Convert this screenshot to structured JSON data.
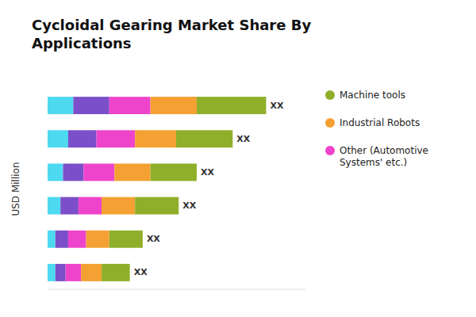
{
  "chart_data": {
    "type": "bar",
    "orientation": "horizontal",
    "stacked": true,
    "title": "Cycloidal Gearing Market Share By\nApplications",
    "y_label": "USD Million",
    "categories": [
      null,
      null,
      null,
      null,
      null,
      null
    ],
    "annotations": [
      "XX",
      "XX",
      "XX",
      "XX",
      "XX",
      "XX"
    ],
    "series": [
      {
        "color": "#4DD9F0",
        "values": [
          0.1,
          0.08,
          0.06,
          0.05,
          0.03,
          0.03
        ]
      },
      {
        "color": "#7B4FC9",
        "values": [
          0.14,
          0.11,
          0.08,
          0.07,
          0.05,
          0.04
        ]
      },
      {
        "name": "Other (Automotive\nSystems' etc.)",
        "color": "#EE44CC",
        "values": [
          0.16,
          0.15,
          0.12,
          0.09,
          0.07,
          0.06
        ]
      },
      {
        "name": "Industrial Robots",
        "color": "#F5A033",
        "values": [
          0.18,
          0.16,
          0.14,
          0.13,
          0.09,
          0.08
        ]
      },
      {
        "name": "Machine tools",
        "color": "#8FAF2A",
        "values": [
          0.27,
          0.22,
          0.18,
          0.17,
          0.13,
          0.11
        ]
      }
    ],
    "xlim": [
      0,
      1.003
    ],
    "tick_labels": false,
    "grid": false,
    "legend": "right"
  }
}
